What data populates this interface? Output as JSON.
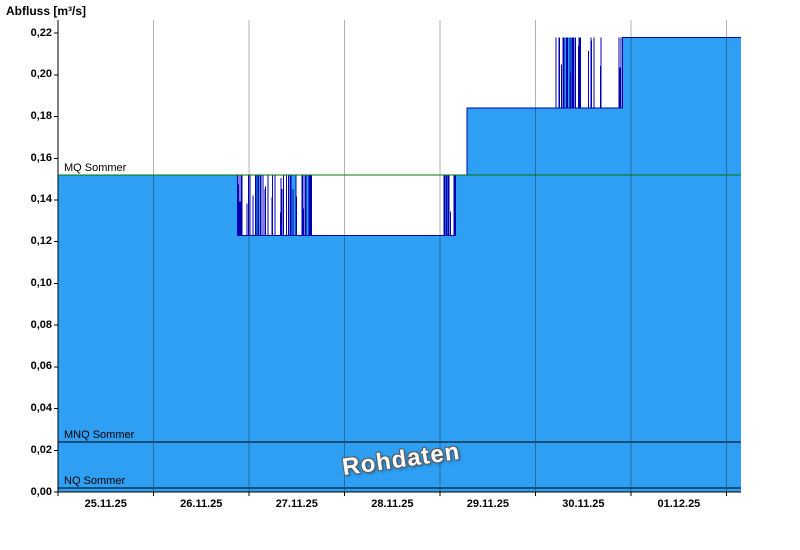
{
  "chart_data": {
    "type": "area",
    "title": "Abfluss [m³/s]",
    "ylabel": "Abfluss [m³/s]",
    "xlabel": "",
    "watermark": "Rohdaten",
    "grid": "vertical-day-boundaries",
    "legend": "none",
    "ylim": [
      0,
      0.2263
    ],
    "ytick_step": 0.02,
    "yticks": [
      "0,00",
      "0,02",
      "0,04",
      "0,06",
      "0,08",
      "0,10",
      "0,12",
      "0,14",
      "0,16",
      "0,18",
      "0,20",
      "0,22"
    ],
    "x_days": [
      "25.11.25",
      "26.11.25",
      "27.11.25",
      "28.11.25",
      "29.11.25",
      "30.11.25",
      "01.12.25"
    ],
    "x_range": [
      0,
      7.15
    ],
    "series": [
      {
        "name": "Abfluss Rohdaten",
        "unit": "m³/s",
        "segments": [
          {
            "t0": 0.0,
            "t1": 1.88,
            "v": 0.152
          },
          {
            "t0": 1.88,
            "t1": 2.66,
            "v": 0.123,
            "noise": {
              "high": 0.152,
              "count": 48,
              "bars": 5
            }
          },
          {
            "t0": 2.66,
            "t1": 4.03,
            "v": 0.123
          },
          {
            "t0": 4.03,
            "t1": 4.16,
            "v": 0.123,
            "noise": {
              "high": 0.152,
              "count": 10,
              "bars": 1
            }
          },
          {
            "t0": 4.16,
            "t1": 4.28,
            "v": 0.152
          },
          {
            "t0": 4.28,
            "t1": 5.21,
            "v": 0.184
          },
          {
            "t0": 5.21,
            "t1": 5.7,
            "v": 0.184,
            "noise": {
              "high": 0.218,
              "count": 28,
              "bars": 3
            }
          },
          {
            "t0": 5.7,
            "t1": 5.86,
            "v": 0.184
          },
          {
            "t0": 5.86,
            "t1": 5.91,
            "v": 0.184,
            "noise": {
              "high": 0.218,
              "count": 3,
              "bars": 0
            }
          },
          {
            "t0": 5.91,
            "t1": 7.15,
            "v": 0.218
          }
        ]
      }
    ],
    "ref_lines": [
      {
        "label": "MQ Sommer",
        "value": 0.152,
        "color": "#007a00"
      },
      {
        "label": "MNQ Sommer",
        "value": 0.024,
        "color": "#000000"
      },
      {
        "label": "NQ Sommer",
        "value": 0.002,
        "color": "#000000"
      }
    ],
    "colors": {
      "fill": "#2e9ff2",
      "line": "#0000b0",
      "grid": "rgba(0,0,0,0.30)",
      "axis": "#000000",
      "background": "#ffffff"
    }
  }
}
